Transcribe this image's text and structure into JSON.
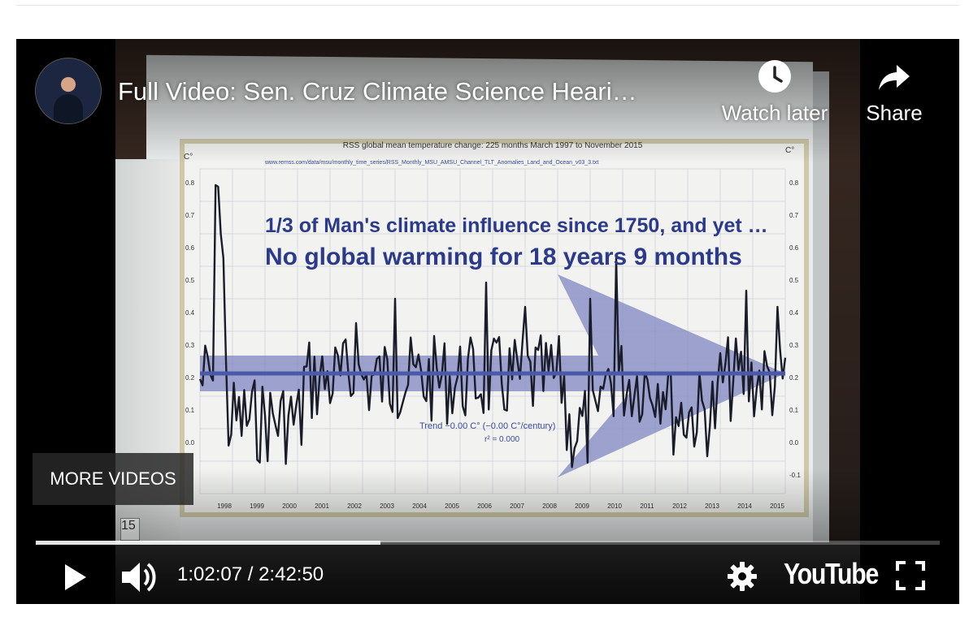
{
  "video": {
    "title": "Full Video: Sen. Cruz Climate Science Heari…",
    "watch_later_label": "Watch later",
    "share_label": "Share",
    "more_videos_label": "MORE VIDEOS",
    "time_display": "1:02:07 / 2:42:50",
    "progress_fraction": 0.381,
    "logo_text": "YouTube",
    "frame_sign_text": "15"
  },
  "board": {
    "chart_title": "RSS global mean temperature change: 225 months March 1997 to November 2015",
    "source_line": "www.remss.com/data/msu/monthly_time_series/RSS_Monthly_MSU_AMSU_Channel_TLT_Anomalies_Land_and_Ocean_v03_3.txt",
    "headline1": "1/3 of Man's climate influence since 1750, and yet …",
    "headline2": "No global warming for 18 years 9 months",
    "trend_label": "Trend −0.00 C° (−0.00 C°/century)",
    "r2_label": "r² = 0.000",
    "unit_label": "C°",
    "years": [
      "1998",
      "1999",
      "2000",
      "2001",
      "2002",
      "2003",
      "2004",
      "2005",
      "2006",
      "2007",
      "2008",
      "2009",
      "2010",
      "2011",
      "2012",
      "2013",
      "2014",
      "2015"
    ],
    "left_ticks": [
      "0.8",
      "0.7",
      "0.6",
      "0.5",
      "0.4",
      "0.3",
      "0.2",
      "0.1",
      "0.0"
    ],
    "right_ticks": [
      "0.8",
      "0.7",
      "0.6",
      "0.5",
      "0.4",
      "0.3",
      "0.2",
      "0.1",
      "0.0",
      "-0.1"
    ]
  },
  "colors": {
    "arrow": "#7f87c0",
    "headline": "#2b3a8a",
    "series": "#1a1c2a"
  }
}
